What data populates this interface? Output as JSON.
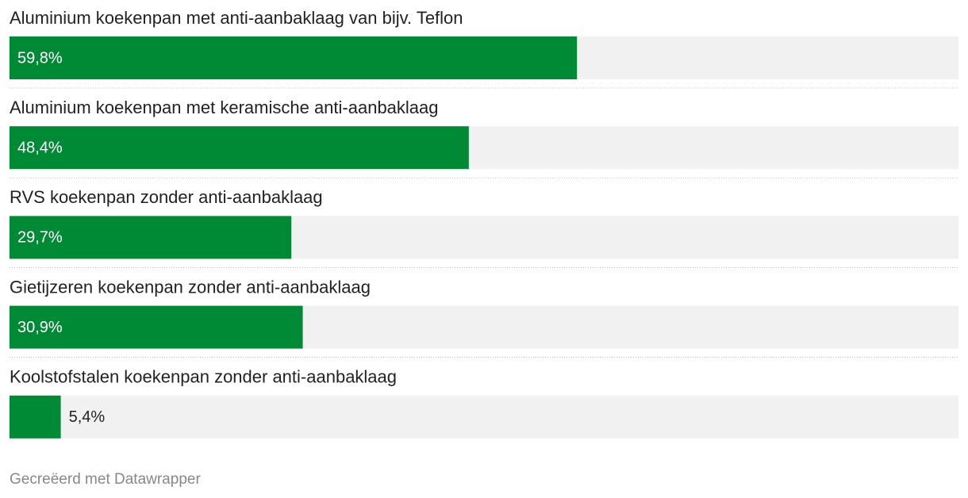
{
  "chart_data": {
    "type": "bar",
    "orientation": "horizontal",
    "categories": [
      "Aluminium koekenpan met anti-aanbaklaag van bijv. Teflon",
      "Aluminium koekenpan met keramische anti-aanbaklaag",
      "RVS koekenpan zonder anti-aanbaklaag",
      "Gietijzeren koekenpan zonder anti-aanbaklaag",
      "Koolstofstalen koekenpan zonder anti-aanbaklaag"
    ],
    "values": [
      59.8,
      48.4,
      29.7,
      30.9,
      5.4
    ],
    "value_labels": [
      "59,8%",
      "48,4%",
      "29,7%",
      "30,9%",
      "5,4%"
    ],
    "color": "#008a36",
    "xlim": [
      0,
      100
    ],
    "credit": "Gecreëerd met Datawrapper"
  }
}
